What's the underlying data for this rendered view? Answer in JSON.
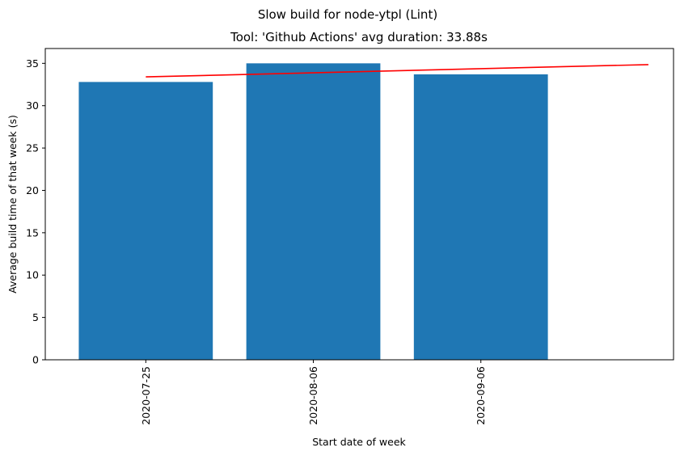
{
  "chart_data": {
    "type": "bar",
    "suptitle": "Slow build for node-ytpl (Lint)",
    "title": "Tool: 'Github Actions' avg duration: 33.88s",
    "xlabel": "Start date of week",
    "ylabel": "Average build time of that week (s)",
    "categories": [
      "2020-07-25",
      "2020-08-06",
      "2020-09-06"
    ],
    "values": [
      32.8,
      35.0,
      33.7
    ],
    "ylim": [
      0,
      36.75
    ],
    "yticks": [
      0,
      5,
      10,
      15,
      20,
      25,
      30,
      35
    ],
    "trend_line": {
      "x": [
        0,
        3
      ],
      "y": [
        33.4,
        34.85
      ]
    },
    "bar_color": "#1f77b4",
    "trend_color": "#ff0000",
    "grid": false,
    "legend": "none"
  }
}
